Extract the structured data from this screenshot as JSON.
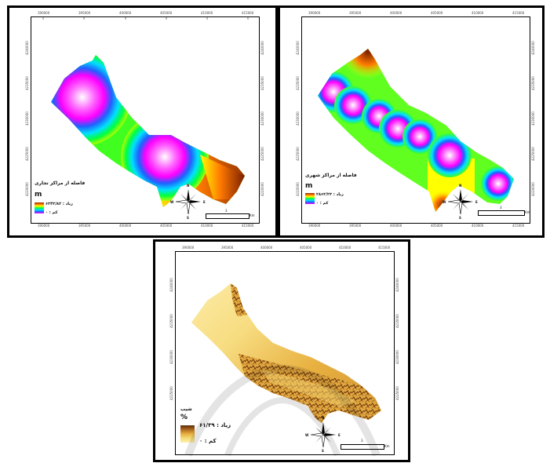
{
  "panels": [
    {
      "id": "commercial",
      "legend_title": "فاصله از مراکز تجاری",
      "unit": "m",
      "high_label": "زیاد : ۶۲۴۳/۸۲",
      "low_label": "کم : ۰",
      "scale_value": "3",
      "scale_unit": "Km",
      "x_ticks": [
        "390000",
        "395000",
        "400000",
        "405000",
        "410000",
        "415000"
      ],
      "y_ticks": [
        "4240000",
        "4235000",
        "4230000",
        "4225000",
        "4220000",
        "4215000"
      ]
    },
    {
      "id": "urban",
      "legend_title": "فاصله از مراکز شهری",
      "unit": "m",
      "high_label": "زیاد : ۲۸۶۳/۲۳",
      "low_label": "کم : ۰",
      "scale_value": "3",
      "scale_unit": "Km",
      "x_ticks": [
        "390000",
        "395000",
        "400000",
        "405000",
        "410000",
        "415000"
      ],
      "y_ticks": [
        "4240000",
        "4235000",
        "4230000",
        "4225000",
        "4220000",
        "4215000"
      ]
    },
    {
      "id": "slope",
      "legend_title": "شیب",
      "unit": "%",
      "high_label": "زیاد : ۶۱/۳۹",
      "low_label": "کم : ۰",
      "scale_value": "3",
      "scale_unit": "Km",
      "x_ticks": [
        "390000",
        "395000",
        "400000",
        "405000",
        "410000",
        "415000"
      ],
      "y_ticks": [
        "4240000",
        "4235000",
        "4230000",
        "4225000",
        "4220000",
        "4215000"
      ]
    }
  ],
  "compass": {
    "n": "N",
    "s": "S",
    "e": "E",
    "w": "W"
  },
  "colors": {
    "rainbow": [
      "#8b2a00",
      "#ff7a00",
      "#ffff00",
      "#00ff40",
      "#00e0ff",
      "#2060ff",
      "#ff00ff",
      "#ffffff"
    ],
    "slope": [
      "#5a2a06",
      "#b06a20",
      "#e8b040",
      "#f5dc78",
      "#fff0b0"
    ]
  }
}
